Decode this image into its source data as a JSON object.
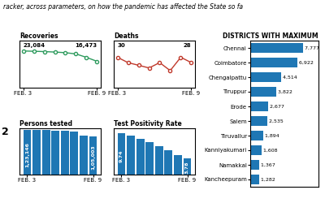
{
  "title": "racker, across parameters, on how the pandemic has affected the State so fa",
  "annotations": [
    "2"
  ],
  "chart_data": [
    {
      "type": "line",
      "title": "Recoveries",
      "categories": [
        "FEB. 3",
        null,
        null,
        null,
        null,
        null,
        null,
        "FEB. 9"
      ],
      "values": [
        23084,
        22900,
        22700,
        22400,
        22000,
        21200,
        19000,
        16473
      ],
      "value_labels": [
        "23,084",
        null,
        null,
        null,
        null,
        null,
        null,
        "16,473"
      ],
      "data_labels": true,
      "color": "#2e9b5e",
      "marker": "o",
      "ylim": [
        -54.5,
        29695.0
      ],
      "tick_labels": "x"
    },
    {
      "type": "line",
      "title": "Deaths",
      "categories": [
        "FEB. 3",
        null,
        null,
        null,
        null,
        null,
        null,
        "FEB. 9"
      ],
      "values": [
        30,
        28,
        27,
        26,
        28,
        25,
        30,
        28
      ],
      "value_labels": [
        "30",
        null,
        null,
        null,
        null,
        null,
        null,
        "28"
      ],
      "data_labels": true,
      "color": "#c0392b",
      "marker": "o",
      "ylim": [
        18.75,
        36.25
      ],
      "tick_labels": "x"
    },
    {
      "type": "bar",
      "title": "Persons tested",
      "categories": [
        "FEB. 3",
        null,
        null,
        null,
        null,
        null,
        null,
        "FEB. 9"
      ],
      "values": [
        123146,
        122500,
        121800,
        121000,
        120200,
        119000,
        107000,
        105003
      ],
      "value_labels": [
        "1,23,146",
        null,
        null,
        null,
        null,
        null,
        null,
        "1,05,003"
      ],
      "data_labels": true,
      "ylim": [
        0,
        128071.84
      ],
      "tick_labels": "x"
    },
    {
      "type": "bar",
      "title": "Test Positivity Rate",
      "categories": [
        "FEB. 3",
        null,
        null,
        null,
        null,
        null,
        null,
        "FEB. 9"
      ],
      "values": [
        9.74,
        9.1,
        8.3,
        7.5,
        6.6,
        5.6,
        4.5,
        3.78
      ],
      "value_labels": [
        "9.74",
        null,
        null,
        null,
        null,
        null,
        null,
        "3.78"
      ],
      "data_labels": true,
      "ylim": [
        0,
        10.9088
      ],
      "tick_labels": "x"
    },
    {
      "type": "bar",
      "orientation": "horizontal",
      "title": "DISTRICTS WITH MAXIMUM",
      "categories": [
        "Chennai",
        "Coimbatore",
        "Chengalpattu",
        "Tiruppur",
        "Erode",
        "Salem",
        "Tiruvallur",
        "Kanniyakumari",
        "Namakkal",
        "Kancheepuram"
      ],
      "values": [
        7777,
        6922,
        4514,
        3822,
        2677,
        2535,
        1894,
        1608,
        1367,
        1282
      ],
      "value_labels": [
        "7,777",
        "6,922",
        "4,514",
        "3,822",
        "2,677",
        "2,535",
        "1,894",
        "1,608",
        "1,367",
        "1,282"
      ],
      "data_labels": true,
      "xlim": [
        0,
        10000
      ],
      "tick_labels": "y"
    }
  ]
}
